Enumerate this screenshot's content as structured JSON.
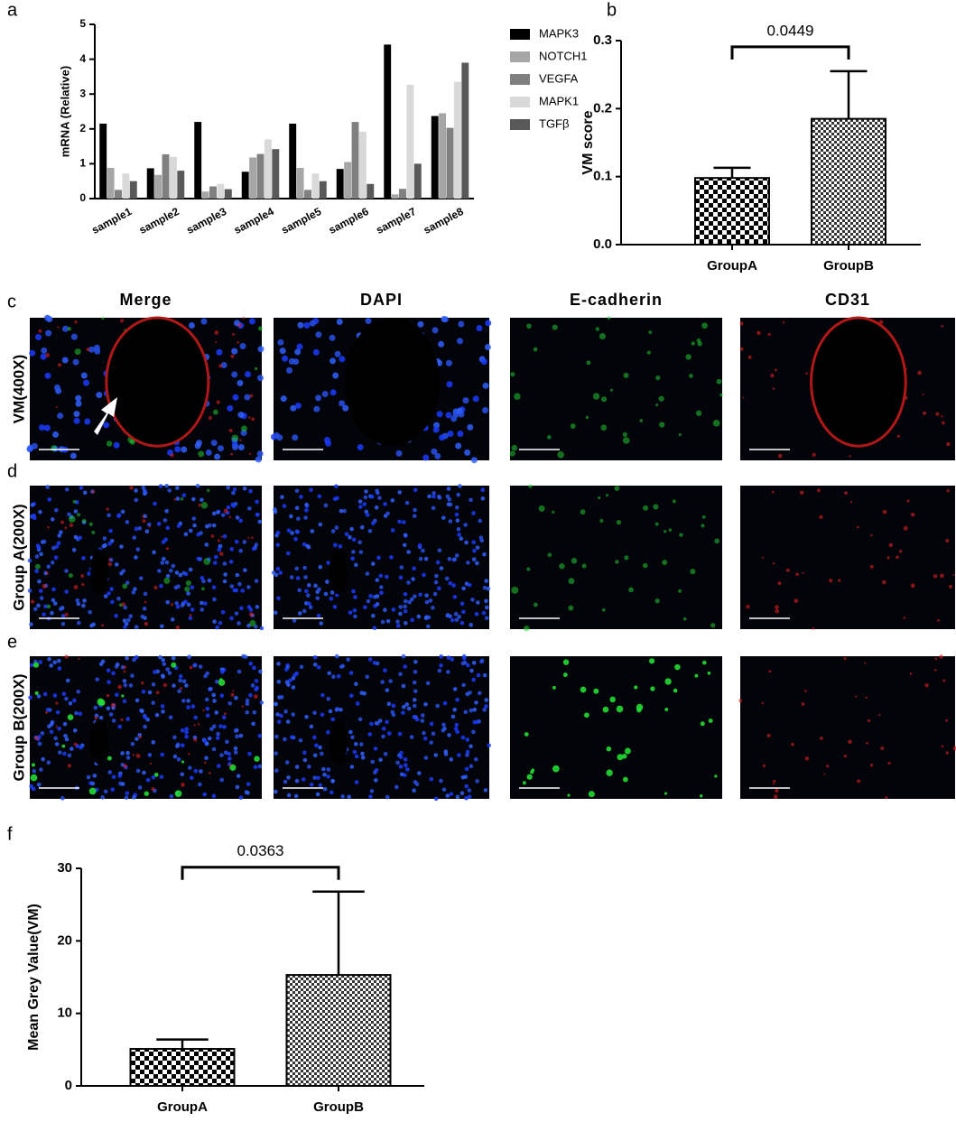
{
  "panel_labels": [
    "a",
    "b",
    "c",
    "d",
    "e",
    "f"
  ],
  "chart_data": [
    {
      "type": "grouped-bar",
      "y_label": "mRNA (Relative)",
      "categories": [
        "sample1",
        "sample2",
        "sample3",
        "sample4",
        "sample5",
        "sample6",
        "sample7",
        "sample8"
      ],
      "series": [
        {
          "name": "MAPK3",
          "color": "#000000",
          "values": [
            2.15,
            0.87,
            2.2,
            0.77,
            2.15,
            0.85,
            4.42,
            2.37
          ]
        },
        {
          "name": "NOTCH1",
          "color": "#a6a6a6",
          "values": [
            0.88,
            0.68,
            0.2,
            1.18,
            0.88,
            1.05,
            0.12,
            2.45
          ]
        },
        {
          "name": "VEGFA",
          "color": "#808080",
          "values": [
            0.25,
            1.27,
            0.35,
            1.28,
            0.25,
            2.2,
            0.28,
            2.03
          ]
        },
        {
          "name": "MAPK1",
          "color": "#d9d9d9",
          "values": [
            0.72,
            1.2,
            0.42,
            1.7,
            0.72,
            1.92,
            3.27,
            3.35
          ]
        },
        {
          "name": "TGFβ",
          "color": "#595959",
          "values": [
            0.5,
            0.8,
            0.27,
            1.42,
            0.5,
            0.42,
            1.0,
            3.9
          ]
        }
      ],
      "ylim": [
        0,
        5
      ],
      "yticks": [
        0,
        1,
        2,
        3,
        4,
        5
      ],
      "legend": "right"
    },
    {
      "type": "bar",
      "y_label": "VM score",
      "categories": [
        "GroupA",
        "GroupB"
      ],
      "values": [
        0.098,
        0.185
      ],
      "errors": [
        0.015,
        0.07
      ],
      "patterns": [
        "checkerboard",
        "fine-checkerboard"
      ],
      "annotation": "0.0449",
      "ylim": [
        0,
        0.3
      ],
      "yticks": [
        {
          "value": 0,
          "label": "0.0"
        },
        0.1,
        0.2,
        0.3
      ]
    },
    {
      "type": "bar",
      "y_label": "Mean Grey Value(VM)",
      "categories": [
        "GroupA",
        "GroupB"
      ],
      "values": [
        5.1,
        15.3
      ],
      "errors": [
        1.3,
        11.5
      ],
      "patterns": [
        "checkerboard",
        "fine-checkerboard"
      ],
      "annotation": "0.0363",
      "ylim": [
        0,
        30
      ],
      "yticks": [
        0,
        10,
        20,
        30
      ]
    }
  ],
  "image_grid": {
    "columns": [
      "Merge",
      "DAPI",
      "E-cadherin",
      "CD31"
    ],
    "rows": [
      "VM(400X)",
      "Group A(200X)",
      "Group B(200X)"
    ]
  }
}
